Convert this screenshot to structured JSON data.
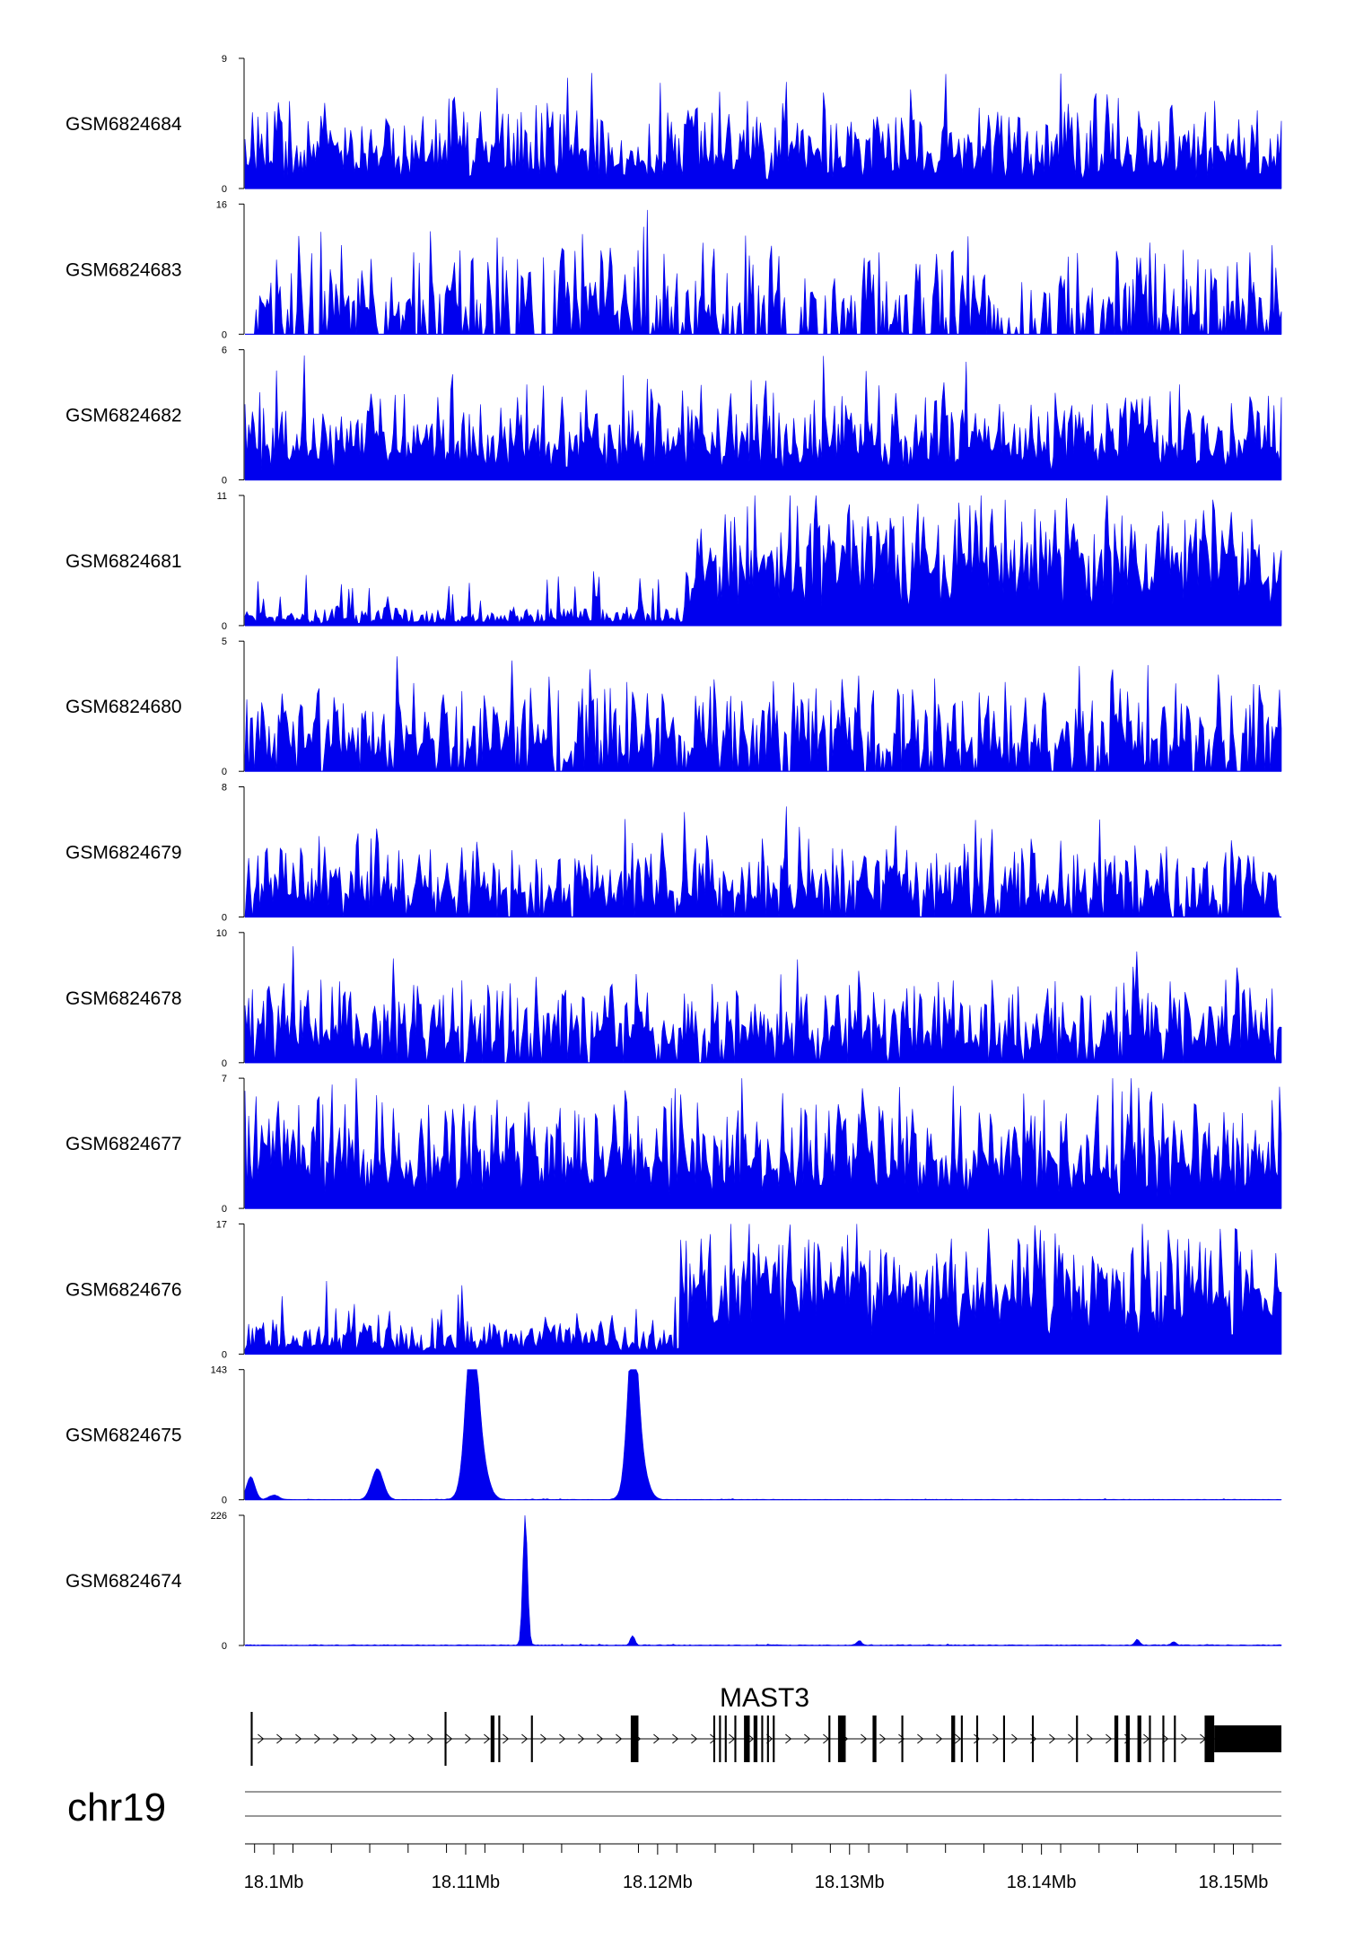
{
  "chart_data": {
    "type": "area",
    "chromosome": "chr19",
    "x_range_mb": [
      18.0985,
      18.1525
    ],
    "x_ticks": [
      {
        "value": 18.1,
        "label": "18.1Mb"
      },
      {
        "value": 18.11,
        "label": "18.11Mb"
      },
      {
        "value": 18.12,
        "label": "18.12Mb"
      },
      {
        "value": 18.13,
        "label": "18.13Mb"
      },
      {
        "value": 18.14,
        "label": "18.14Mb"
      },
      {
        "value": 18.15,
        "label": "18.15Mb"
      }
    ],
    "color": "#0000ee",
    "tracks": [
      {
        "name": "GSM6824684",
        "ymax": 9,
        "ymin_label": "0",
        "peaks": [
          [
            18.1002,
            3.5
          ],
          [
            18.1012,
            3.2
          ],
          [
            18.104,
            2.8
          ],
          [
            18.1104,
            2.5
          ],
          [
            18.1118,
            5.0
          ],
          [
            18.1165,
            4.0
          ],
          [
            18.1215,
            5.0
          ],
          [
            18.1245,
            4.5
          ],
          [
            18.1265,
            4.2
          ],
          [
            18.1283,
            4.4
          ],
          [
            18.1314,
            6.0
          ],
          [
            18.1332,
            7.9
          ],
          [
            18.135,
            9.0
          ],
          [
            18.137,
            3.8
          ],
          [
            18.1403,
            5.9
          ],
          [
            18.145,
            3.4
          ],
          [
            18.1503,
            3.5
          ],
          [
            18.1519,
            2.8
          ]
        ],
        "baseline": 1.9,
        "noise": 1.6,
        "density": 1.0
      },
      {
        "name": "GSM6824683",
        "ymax": 16,
        "ymin_label": "0",
        "peaks": [
          [
            18.1003,
            7.8
          ],
          [
            18.105,
            3.8
          ],
          [
            18.1061,
            4.0
          ],
          [
            18.11,
            3.7
          ],
          [
            18.1112,
            9.8
          ],
          [
            18.113,
            7.6
          ],
          [
            18.1162,
            6.8
          ],
          [
            18.119,
            7.7
          ],
          [
            18.1223,
            7.2
          ],
          [
            18.1281,
            7.5
          ],
          [
            18.1344,
            8.2
          ],
          [
            18.136,
            6.0
          ],
          [
            18.141,
            8.0
          ],
          [
            18.1453,
            7.6
          ],
          [
            18.1505,
            5.8
          ],
          [
            18.1523,
            5.3
          ]
        ],
        "baseline": 3.5,
        "noise": 3.4,
        "density": 0.55
      },
      {
        "name": "GSM6824682",
        "ymax": 6,
        "ymin_label": "0",
        "peaks": [
          [
            18.1035,
            3.9
          ],
          [
            18.1063,
            4.4
          ],
          [
            18.1093,
            4.2
          ],
          [
            18.112,
            3.2
          ],
          [
            18.115,
            3.5
          ],
          [
            18.1175,
            3.2
          ],
          [
            18.1197,
            6.0
          ],
          [
            18.1201,
            4.7
          ],
          [
            18.1255,
            3.3
          ],
          [
            18.1298,
            3.6
          ],
          [
            18.1325,
            3.2
          ],
          [
            18.1349,
            5.5
          ],
          [
            18.1378,
            4.4
          ],
          [
            18.142,
            4.4
          ],
          [
            18.1455,
            3.8
          ],
          [
            18.1509,
            5.5
          ]
        ],
        "baseline": 1.3,
        "noise": 1.1,
        "density": 1.0
      },
      {
        "name": "GSM6824681",
        "ymax": 11,
        "ymin_label": "0",
        "peaks": [
          [
            18.1168,
            3.8
          ],
          [
            18.1195,
            1.5
          ],
          [
            18.1215,
            5.0
          ],
          [
            18.123,
            7.8
          ],
          [
            18.126,
            7.1
          ],
          [
            18.129,
            8.5
          ],
          [
            18.1315,
            6.2
          ],
          [
            18.1345,
            8.5
          ],
          [
            18.1375,
            8.2
          ],
          [
            18.14,
            8.8
          ],
          [
            18.143,
            7.4
          ],
          [
            18.1447,
            10.7
          ],
          [
            18.146,
            10.5
          ],
          [
            18.148,
            7.5
          ]
        ],
        "baseline": 0.4,
        "noise": 0.5,
        "density": 1.0,
        "step_at": 18.1215,
        "step_level": 4.6,
        "step_noise": 2.4
      },
      {
        "name": "GSM6824680",
        "ymax": 5,
        "ymin_label": "0",
        "peaks": [
          [
            18.1005,
            2.8
          ],
          [
            18.1073,
            3.8
          ],
          [
            18.109,
            2.9
          ],
          [
            18.1124,
            4.8
          ],
          [
            18.1134,
            3.8
          ],
          [
            18.1165,
            5.0
          ],
          [
            18.12,
            2.8
          ],
          [
            18.122,
            3.8
          ],
          [
            18.1255,
            3.8
          ],
          [
            18.1296,
            4.0
          ],
          [
            18.1325,
            3.8
          ],
          [
            18.1372,
            3.8
          ],
          [
            18.1402,
            3.8
          ],
          [
            18.142,
            2.7
          ],
          [
            18.1445,
            3.6
          ],
          [
            18.1473,
            3.0
          ]
        ],
        "baseline": 1.0,
        "noise": 1.0,
        "density": 0.8
      },
      {
        "name": "GSM6824679",
        "ymax": 8,
        "ymin_label": "0",
        "peaks": [
          [
            18.1001,
            3.6
          ],
          [
            18.1043,
            3.5
          ],
          [
            18.1054,
            8.0
          ],
          [
            18.1075,
            2.5
          ],
          [
            18.109,
            4.3
          ],
          [
            18.1128,
            3.8
          ],
          [
            18.116,
            3.6
          ],
          [
            18.119,
            4.2
          ],
          [
            18.1214,
            6.8
          ],
          [
            18.1275,
            4.0
          ],
          [
            18.1314,
            5.2
          ],
          [
            18.136,
            5.4
          ],
          [
            18.1374,
            6.8
          ],
          [
            18.141,
            5.6
          ],
          [
            18.1455,
            4.5
          ],
          [
            18.15,
            4.0
          ]
        ],
        "baseline": 1.4,
        "noise": 1.3,
        "density": 0.9
      },
      {
        "name": "GSM6824678",
        "ymax": 10,
        "ymin_label": "0",
        "peaks": [
          [
            18.101,
            9.8
          ],
          [
            18.104,
            5.9
          ],
          [
            18.1075,
            7.2
          ],
          [
            18.1112,
            8.5
          ],
          [
            18.1146,
            5.0
          ],
          [
            18.119,
            5.3
          ],
          [
            18.123,
            4.8
          ],
          [
            18.1267,
            4.2
          ],
          [
            18.131,
            5.8
          ],
          [
            18.1352,
            4.8
          ],
          [
            18.1405,
            5.2
          ],
          [
            18.1432,
            4.0
          ],
          [
            18.1448,
            10.0
          ],
          [
            18.147,
            5.1
          ],
          [
            18.1505,
            5.4
          ]
        ],
        "baseline": 2.0,
        "noise": 1.8,
        "density": 0.9
      },
      {
        "name": "GSM6824677",
        "ymax": 7,
        "ymin_label": "0",
        "peaks": [
          [
            18.103,
            4.8
          ],
          [
            18.1065,
            5.0
          ],
          [
            18.109,
            6.6
          ],
          [
            18.1105,
            7.0
          ],
          [
            18.1125,
            5.6
          ],
          [
            18.1145,
            5.0
          ],
          [
            18.1178,
            5.8
          ],
          [
            18.12,
            4.3
          ],
          [
            18.127,
            4.6
          ],
          [
            18.1305,
            6.4
          ],
          [
            18.133,
            4.5
          ],
          [
            18.1365,
            4.4
          ],
          [
            18.142,
            4.0
          ],
          [
            18.1465,
            4.6
          ],
          [
            18.151,
            4.8
          ]
        ],
        "baseline": 2.1,
        "noise": 1.6,
        "density": 1.0
      },
      {
        "name": "GSM6824676",
        "ymax": 17,
        "ymin_label": "0",
        "peaks": [
          [
            18.1145,
            5.0
          ],
          [
            18.1166,
            4.5
          ],
          [
            18.122,
            7.6
          ],
          [
            18.1242,
            11.0
          ],
          [
            18.1255,
            16.5
          ],
          [
            18.1278,
            8.5
          ],
          [
            18.132,
            10.2
          ],
          [
            18.1349,
            14.8
          ],
          [
            18.137,
            7.9
          ],
          [
            18.1392,
            10.3
          ],
          [
            18.1432,
            13.0
          ],
          [
            18.1456,
            14.0
          ],
          [
            18.1475,
            12.2
          ],
          [
            18.149,
            9.2
          ]
        ],
        "baseline": 1.0,
        "noise": 1.4,
        "density": 1.0,
        "step_at": 18.1212,
        "step_level": 7.0,
        "step_noise": 3.5
      },
      {
        "name": "GSM6824675",
        "ymax": 143,
        "ymin_label": "0",
        "gaussians": [
          [
            18.0988,
            25,
            0.00022
          ],
          [
            18.1,
            5,
            0.00025
          ],
          [
            18.1054,
            34,
            0.0003
          ],
          [
            18.1103,
            125,
            0.00028
          ],
          [
            18.1105,
            80,
            0.00045
          ],
          [
            18.1187,
            140,
            0.00026
          ],
          [
            18.1189,
            60,
            0.00042
          ]
        ],
        "baseline": 0.6,
        "noise": 1.0,
        "density": 1.0
      },
      {
        "name": "GSM6824674",
        "ymax": 226,
        "ymin_label": "0",
        "gaussians": [
          [
            18.1131,
            226,
            0.00012
          ],
          [
            18.1187,
            16,
            0.00012
          ],
          [
            18.1305,
            8,
            0.00012
          ],
          [
            18.145,
            10,
            0.00012
          ],
          [
            18.1469,
            6,
            0.00012
          ]
        ],
        "baseline": 1.5,
        "noise": 2.0,
        "density": 1.0
      }
    ],
    "gene": {
      "name": "MAST3",
      "start_mb": 18.0988,
      "end_mb": 18.1525,
      "strand": "+",
      "exons_mb": [
        [
          18.0988,
          18.0989
        ],
        [
          18.1089,
          18.109
        ],
        [
          18.1113,
          18.1115
        ],
        [
          18.1117,
          18.1118
        ],
        [
          18.1134,
          18.1135
        ],
        [
          18.1186,
          18.119
        ],
        [
          18.1229,
          18.123
        ],
        [
          18.1232,
          18.1233
        ],
        [
          18.1235,
          18.1236
        ],
        [
          18.124,
          18.1241
        ],
        [
          18.1245,
          18.1248
        ],
        [
          18.125,
          18.1252
        ],
        [
          18.1254,
          18.1255
        ],
        [
          18.1257,
          18.1258
        ],
        [
          18.126,
          18.1261
        ],
        [
          18.1289,
          18.129
        ],
        [
          18.1294,
          18.1298
        ],
        [
          18.1312,
          18.1314
        ],
        [
          18.1327,
          18.1328
        ],
        [
          18.1353,
          18.1355
        ],
        [
          18.1358,
          18.1359
        ],
        [
          18.1366,
          18.1367
        ],
        [
          18.138,
          18.1381
        ],
        [
          18.1395,
          18.1396
        ],
        [
          18.1418,
          18.1419
        ],
        [
          18.1438,
          18.144
        ],
        [
          18.1444,
          18.1446
        ],
        [
          18.145,
          18.1452
        ],
        [
          18.1456,
          18.1457
        ],
        [
          18.1463,
          18.1464
        ],
        [
          18.1469,
          18.147
        ],
        [
          18.1485,
          18.149
        ]
      ],
      "utr_mb": [
        18.149,
        18.1525
      ]
    }
  }
}
